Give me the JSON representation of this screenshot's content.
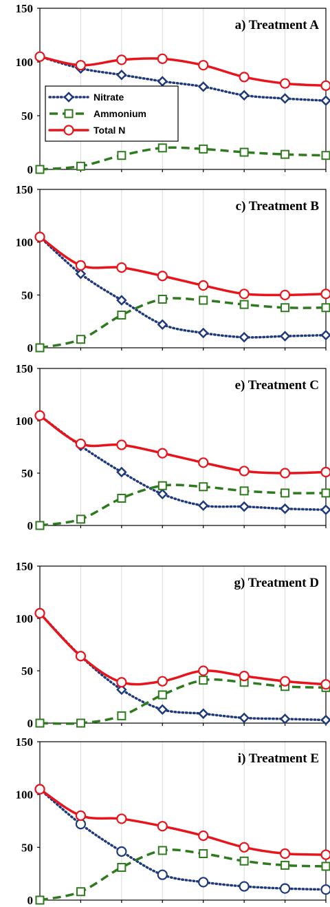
{
  "colors": {
    "nitrate": "#1f3a7a",
    "ammonium": "#2e7a1e",
    "total_n": "#e8141c",
    "grid": "#d9d9d9",
    "axis": "#000000"
  },
  "legend": {
    "panel": 0,
    "placement": "upper-left",
    "items": [
      "Nitrate",
      "Ammonium",
      "Total N"
    ]
  },
  "chart_data": [
    {
      "type": "line",
      "title": "a) Treatment A",
      "ylim": [
        0,
        150
      ],
      "yticks": [
        "0",
        "50",
        "100",
        "150"
      ],
      "grid": true,
      "x": [
        0,
        1,
        2,
        3,
        4,
        5,
        6,
        7
      ],
      "series": [
        {
          "name": "Nitrate",
          "marker": "diamond",
          "values": [
            105,
            94,
            88,
            82,
            77,
            69,
            66,
            64
          ]
        },
        {
          "name": "Ammonium",
          "marker": "square",
          "values": [
            0,
            3,
            13,
            20,
            19,
            16,
            14,
            13
          ]
        },
        {
          "name": "Total N",
          "marker": "circle",
          "values": [
            105,
            97,
            102,
            103,
            97,
            86,
            80,
            78
          ]
        }
      ]
    },
    {
      "type": "line",
      "title": "c) Treatment B",
      "ylim": [
        0,
        150
      ],
      "yticks": [
        "0",
        "50",
        "100",
        "150"
      ],
      "grid": true,
      "x": [
        0,
        1,
        2,
        3,
        4,
        5,
        6,
        7
      ],
      "series": [
        {
          "name": "Nitrate",
          "marker": "diamond",
          "values": [
            105,
            70,
            45,
            22,
            14,
            10,
            11,
            12
          ]
        },
        {
          "name": "Ammonium",
          "marker": "square",
          "values": [
            0,
            8,
            31,
            46,
            45,
            41,
            38,
            38
          ]
        },
        {
          "name": "Total N",
          "marker": "circle",
          "values": [
            105,
            78,
            76,
            68,
            59,
            51,
            50,
            51
          ]
        }
      ]
    },
    {
      "type": "line",
      "title": "e) Treatment C",
      "ylim": [
        0,
        150
      ],
      "yticks": [
        "0",
        "50",
        "100",
        "150"
      ],
      "grid": true,
      "x": [
        0,
        1,
        2,
        3,
        4,
        5,
        6,
        7
      ],
      "series": [
        {
          "name": "Nitrate",
          "marker": "diamond",
          "values": [
            105,
            76,
            51,
            30,
            19,
            18,
            16,
            15
          ]
        },
        {
          "name": "Ammonium",
          "marker": "square",
          "values": [
            0,
            6,
            26,
            38,
            37,
            33,
            31,
            31
          ]
        },
        {
          "name": "Total N",
          "marker": "circle",
          "values": [
            105,
            78,
            77,
            69,
            60,
            52,
            50,
            51
          ]
        }
      ]
    },
    {
      "type": "line",
      "title": "g) Treatment D",
      "ylim": [
        0,
        150
      ],
      "yticks": [
        "0",
        "50",
        "100",
        "150"
      ],
      "grid": true,
      "x": [
        0,
        1,
        2,
        3,
        4,
        5,
        6,
        7
      ],
      "series": [
        {
          "name": "Nitrate",
          "marker": "diamond",
          "values": [
            105,
            64,
            32,
            13,
            9,
            5,
            4,
            3
          ]
        },
        {
          "name": "Ammonium",
          "marker": "square",
          "values": [
            0,
            0,
            7,
            27,
            41,
            39,
            35,
            34
          ]
        },
        {
          "name": "Total N",
          "marker": "circle",
          "values": [
            105,
            64,
            39,
            40,
            50,
            45,
            40,
            37
          ]
        }
      ]
    },
    {
      "type": "line",
      "title": "i) Treatment E",
      "ylim": [
        0,
        150
      ],
      "yticks": [
        "0",
        "50",
        "100",
        "150"
      ],
      "grid": true,
      "x": [
        0,
        1,
        2,
        3,
        4,
        5,
        6,
        7
      ],
      "series": [
        {
          "name": "Nitrate",
          "marker": "circle",
          "values": [
            105,
            72,
            46,
            24,
            17,
            13,
            11,
            10
          ]
        },
        {
          "name": "Ammonium",
          "marker": "square",
          "values": [
            0,
            8,
            31,
            47,
            44,
            37,
            33,
            32
          ]
        },
        {
          "name": "Total N",
          "marker": "circle",
          "values": [
            105,
            80,
            77,
            70,
            61,
            50,
            44,
            43
          ]
        }
      ]
    }
  ]
}
